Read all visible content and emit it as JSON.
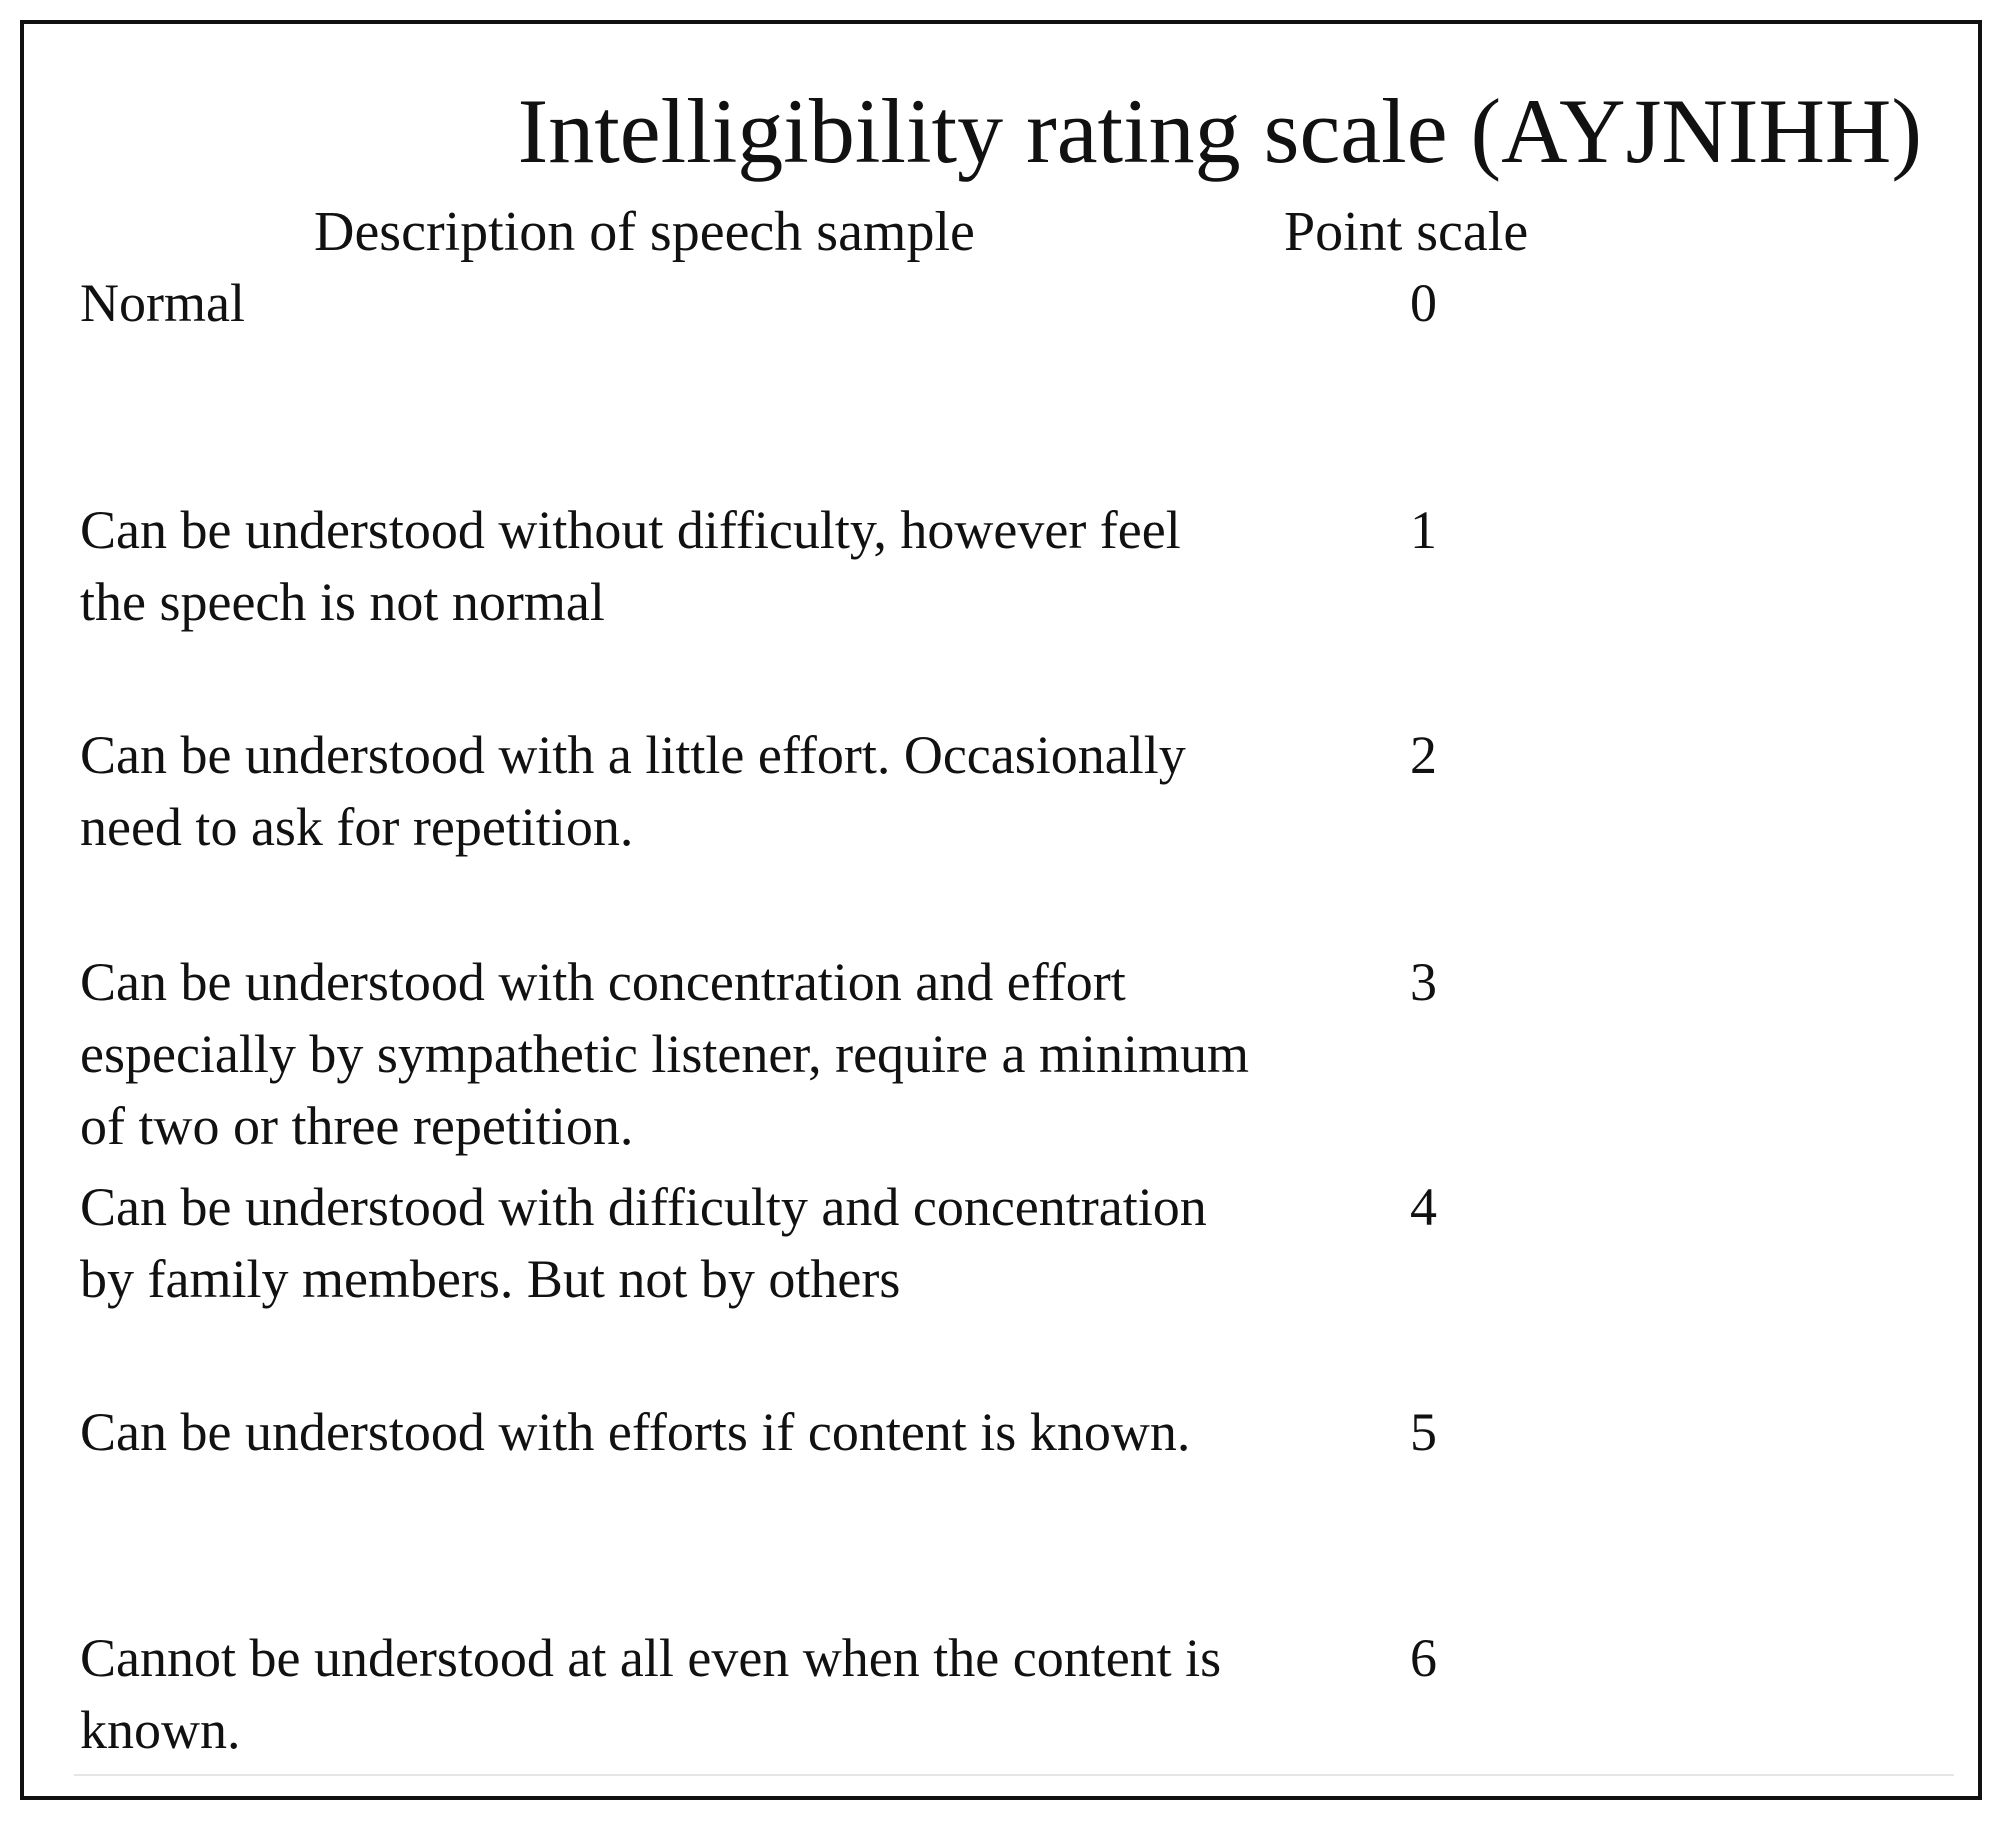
{
  "title": "Intelligibility rating scale (AYJNIHH)",
  "columns": {
    "description": "Description of speech sample",
    "points": "Point scale"
  },
  "rows": [
    {
      "description": "Normal",
      "score": "0"
    },
    {
      "description": "Can be understood without difficulty, however feel the speech is not normal",
      "score": "1"
    },
    {
      "description": "Can be understood with a little effort. Occasionally need to ask for repetition.",
      "score": "2"
    },
    {
      "description": "Can be understood with concentration and effort especially by sympathetic listener, require a minimum of two or three repetition.",
      "score": "3"
    },
    {
      "description": "Can be understood with difficulty and concentration by family members. But not by others",
      "score": "4"
    },
    {
      "description": "Can be understood with efforts if content is known.",
      "score": "5"
    },
    {
      "description": "Cannot be understood at all even when the content is known.",
      "score": "6"
    }
  ]
}
